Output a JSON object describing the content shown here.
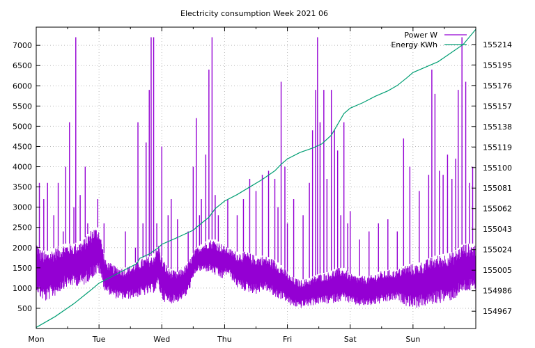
{
  "chart_data": {
    "type": "line",
    "title": "Electricity consumption Week 2021 06",
    "grid": true,
    "legend_position": "top-right",
    "x_ticks": [
      "Mon",
      "Tue",
      "Wed",
      "Thu",
      "Fri",
      "Sat",
      "Sun"
    ],
    "xlim": [
      0,
      7
    ],
    "y_left": {
      "ticks": [
        500,
        1000,
        1500,
        2000,
        2500,
        3000,
        3500,
        4000,
        4500,
        5000,
        5500,
        6000,
        6500,
        7000
      ],
      "ylim": [
        0,
        7450
      ]
    },
    "y_right": {
      "ticks": [
        154967,
        154986,
        155005,
        155024,
        155043,
        155062,
        155081,
        155100,
        155119,
        155138,
        155157,
        155176,
        155195,
        155214
      ],
      "ylim": [
        154951,
        155230
      ]
    },
    "series": [
      {
        "name": "Power W",
        "axis": "left",
        "color": "#9400d3",
        "profile": {
          "x": [
            0,
            0.05,
            0.15,
            0.3,
            0.45,
            0.6,
            0.75,
            0.9,
            1.0,
            1.1,
            1.25,
            1.4,
            1.55,
            1.7,
            1.85,
            1.95,
            2.0,
            2.1,
            2.25,
            2.4,
            2.55,
            2.75,
            2.85,
            2.95,
            3.05,
            3.2,
            3.35,
            3.5,
            3.65,
            3.8,
            3.95,
            4.05,
            4.2,
            4.35,
            4.5,
            4.65,
            4.8,
            4.9,
            5.0,
            5.15,
            5.3,
            5.45,
            5.6,
            5.75,
            5.9,
            6.05,
            6.2,
            6.35,
            6.5,
            6.65,
            6.8,
            7.0
          ],
          "low": [
            1000,
            750,
            650,
            800,
            1000,
            1050,
            1050,
            1250,
            1350,
            900,
            750,
            700,
            750,
            800,
            850,
            1000,
            700,
            600,
            650,
            800,
            1400,
            1400,
            1300,
            1200,
            1350,
            1000,
            900,
            850,
            950,
            750,
            700,
            550,
            500,
            550,
            600,
            600,
            650,
            700,
            600,
            550,
            550,
            600,
            650,
            700,
            550,
            500,
            550,
            600,
            650,
            700,
            900,
            900
          ],
          "high": [
            2200,
            2000,
            1900,
            2000,
            2100,
            2100,
            2200,
            2500,
            2500,
            1700,
            1550,
            1500,
            1600,
            1750,
            1800,
            2100,
            1800,
            1500,
            1400,
            1600,
            2000,
            2200,
            2200,
            2100,
            2000,
            1900,
            1900,
            1800,
            1800,
            1700,
            1500,
            1300,
            1200,
            1250,
            1350,
            1400,
            1500,
            1500,
            1350,
            1300,
            1300,
            1400,
            1450,
            1450,
            1600,
            1600,
            1700,
            1800,
            1850,
            1900,
            2100,
            2100
          ]
        },
        "spikes": [
          [
            0.05,
            3600
          ],
          [
            0.12,
            3200
          ],
          [
            0.18,
            3600
          ],
          [
            0.28,
            2800
          ],
          [
            0.35,
            3600
          ],
          [
            0.43,
            2400
          ],
          [
            0.47,
            4000
          ],
          [
            0.53,
            5100
          ],
          [
            0.6,
            3000
          ],
          [
            0.63,
            7200
          ],
          [
            0.7,
            3300
          ],
          [
            0.78,
            4000
          ],
          [
            0.82,
            2600
          ],
          [
            0.98,
            3200
          ],
          [
            1.08,
            2600
          ],
          [
            1.42,
            2400
          ],
          [
            1.58,
            2000
          ],
          [
            1.62,
            5100
          ],
          [
            1.7,
            2600
          ],
          [
            1.75,
            4600
          ],
          [
            1.8,
            5900
          ],
          [
            1.83,
            7200
          ],
          [
            1.87,
            7200
          ],
          [
            1.92,
            2600
          ],
          [
            2.0,
            4500
          ],
          [
            2.1,
            2800
          ],
          [
            2.15,
            3200
          ],
          [
            2.25,
            2700
          ],
          [
            2.42,
            2400
          ],
          [
            2.5,
            4000
          ],
          [
            2.55,
            5200
          ],
          [
            2.6,
            2800
          ],
          [
            2.63,
            3200
          ],
          [
            2.7,
            4300
          ],
          [
            2.75,
            6400
          ],
          [
            2.8,
            7200
          ],
          [
            2.85,
            3300
          ],
          [
            2.9,
            2800
          ],
          [
            3.05,
            3200
          ],
          [
            3.2,
            2800
          ],
          [
            3.3,
            3200
          ],
          [
            3.4,
            3700
          ],
          [
            3.5,
            3400
          ],
          [
            3.6,
            3800
          ],
          [
            3.7,
            3900
          ],
          [
            3.8,
            3700
          ],
          [
            3.85,
            3000
          ],
          [
            3.9,
            6100
          ],
          [
            3.96,
            4000
          ],
          [
            4.0,
            2600
          ],
          [
            4.1,
            3200
          ],
          [
            4.25,
            2800
          ],
          [
            4.35,
            3600
          ],
          [
            4.4,
            4900
          ],
          [
            4.45,
            5900
          ],
          [
            4.48,
            7200
          ],
          [
            4.52,
            5100
          ],
          [
            4.58,
            5900
          ],
          [
            4.63,
            3700
          ],
          [
            4.7,
            5900
          ],
          [
            4.75,
            4900
          ],
          [
            4.8,
            4400
          ],
          [
            4.85,
            2800
          ],
          [
            4.9,
            5100
          ],
          [
            4.96,
            2600
          ],
          [
            5.0,
            2900
          ],
          [
            5.15,
            2200
          ],
          [
            5.3,
            2400
          ],
          [
            5.45,
            2600
          ],
          [
            5.6,
            2700
          ],
          [
            5.75,
            2400
          ],
          [
            5.85,
            4700
          ],
          [
            5.95,
            4000
          ],
          [
            6.1,
            3400
          ],
          [
            6.25,
            3800
          ],
          [
            6.3,
            6400
          ],
          [
            6.35,
            5800
          ],
          [
            6.42,
            3900
          ],
          [
            6.48,
            3800
          ],
          [
            6.55,
            4300
          ],
          [
            6.62,
            3700
          ],
          [
            6.68,
            4200
          ],
          [
            6.72,
            5900
          ],
          [
            6.78,
            7200
          ],
          [
            6.84,
            6100
          ],
          [
            6.9,
            3600
          ],
          [
            6.95,
            4000
          ]
        ]
      },
      {
        "name": "Energy KWh",
        "axis": "right",
        "color": "#009e73",
        "x": [
          0,
          0.3,
          0.6,
          0.9,
          1.0,
          1.2,
          1.4,
          1.6,
          1.65,
          1.8,
          1.95,
          2.0,
          2.2,
          2.5,
          2.6,
          2.75,
          2.85,
          3.0,
          3.2,
          3.4,
          3.6,
          3.8,
          3.9,
          4.0,
          4.2,
          4.4,
          4.55,
          4.7,
          4.8,
          4.9,
          5.0,
          5.2,
          5.4,
          5.6,
          5.75,
          5.9,
          6.0,
          6.2,
          6.4,
          6.6,
          6.8,
          7.0
        ],
        "y": [
          154952,
          154962,
          154974,
          154988,
          154993,
          154999,
          155005,
          155011,
          155016,
          155020,
          155026,
          155029,
          155034,
          155042,
          155047,
          155054,
          155062,
          155069,
          155075,
          155082,
          155089,
          155097,
          155103,
          155108,
          155114,
          155118,
          155122,
          155130,
          155140,
          155150,
          155155,
          155160,
          155166,
          155171,
          155176,
          155183,
          155188,
          155193,
          155198,
          155206,
          155214,
          155228
        ]
      }
    ]
  }
}
